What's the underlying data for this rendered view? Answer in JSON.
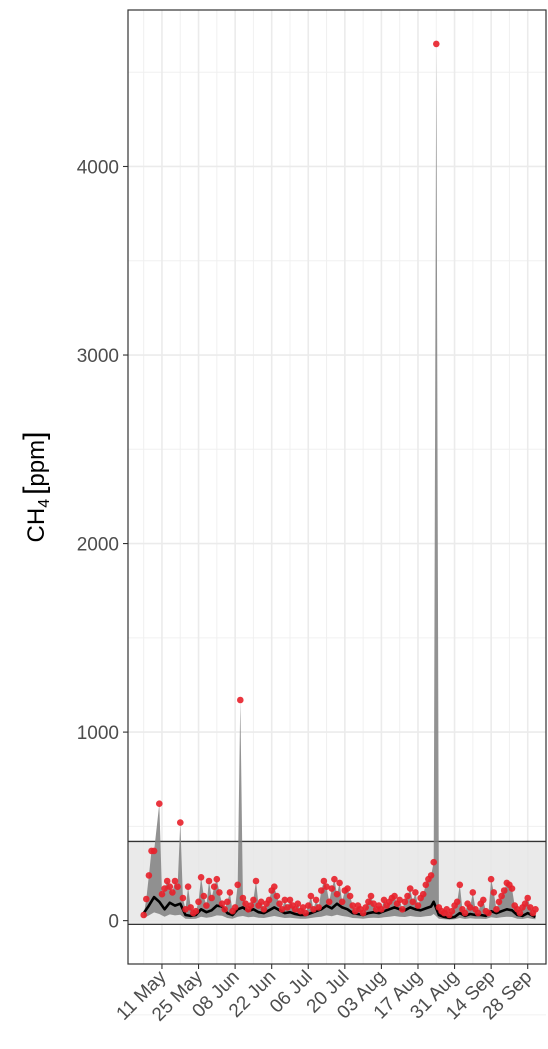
{
  "chart_data": {
    "type": "area",
    "title": "",
    "xlabel": "",
    "ylabel": {
      "main": "CH",
      "subscript": "4",
      "unit": "ppm"
    },
    "ylim": [
      -230,
      4830
    ],
    "xlim": [
      "2022-04-28",
      "2022-10-05"
    ],
    "grid": true,
    "legend": "none",
    "y_ticks": [
      0,
      1000,
      2000,
      3000,
      4000
    ],
    "y_tick_labels": [
      "0",
      "1000",
      "2000",
      "3000",
      "4000"
    ],
    "x_ticks": [
      "2022-05-11",
      "2022-05-25",
      "2022-06-08",
      "2022-06-22",
      "2022-07-06",
      "2022-07-20",
      "2022-08-03",
      "2022-08-17",
      "2022-08-31",
      "2022-09-14",
      "2022-09-28"
    ],
    "x_tick_labels": [
      "11 May",
      "25 May",
      "08 Jun",
      "22 Jun",
      "06 Jul",
      "20 Jul",
      "03 Aug",
      "17 Aug",
      "31 Aug",
      "14 Sep",
      "28 Sep"
    ],
    "band": {
      "ymin": -20,
      "ymax": 420
    },
    "colors": {
      "max_points": "#e8202a",
      "median_line": "#000000",
      "range_fill": "#808080",
      "band_fill": "#e6e6e6",
      "band_edge": "#333333"
    },
    "series": [
      {
        "role": "max_points",
        "points": [
          [
            "2022-05-04",
            30
          ],
          [
            "2022-05-05",
            115
          ],
          [
            "2022-05-06",
            240
          ],
          [
            "2022-05-07",
            370
          ],
          [
            "2022-05-08",
            370
          ],
          [
            "2022-05-10",
            620
          ],
          [
            "2022-05-11",
            140
          ],
          [
            "2022-05-12",
            170
          ],
          [
            "2022-05-13",
            210
          ],
          [
            "2022-05-14",
            180
          ],
          [
            "2022-05-15",
            150
          ],
          [
            "2022-05-16",
            210
          ],
          [
            "2022-05-17",
            180
          ],
          [
            "2022-05-18",
            520
          ],
          [
            "2022-05-19",
            120
          ],
          [
            "2022-05-20",
            60
          ],
          [
            "2022-05-21",
            180
          ],
          [
            "2022-05-22",
            70
          ],
          [
            "2022-05-23",
            40
          ],
          [
            "2022-05-24",
            50
          ],
          [
            "2022-05-25",
            100
          ],
          [
            "2022-05-26",
            230
          ],
          [
            "2022-05-27",
            130
          ],
          [
            "2022-05-28",
            80
          ],
          [
            "2022-05-29",
            210
          ],
          [
            "2022-05-30",
            120
          ],
          [
            "2022-05-31",
            180
          ],
          [
            "2022-06-01",
            220
          ],
          [
            "2022-06-02",
            150
          ],
          [
            "2022-06-03",
            90
          ],
          [
            "2022-06-04",
            60
          ],
          [
            "2022-06-05",
            100
          ],
          [
            "2022-06-06",
            150
          ],
          [
            "2022-06-07",
            50
          ],
          [
            "2022-06-08",
            70
          ],
          [
            "2022-06-09",
            190
          ],
          [
            "2022-06-10",
            1170
          ],
          [
            "2022-06-11",
            120
          ],
          [
            "2022-06-12",
            90
          ],
          [
            "2022-06-13",
            60
          ],
          [
            "2022-06-14",
            80
          ],
          [
            "2022-06-15",
            110
          ],
          [
            "2022-06-16",
            210
          ],
          [
            "2022-06-17",
            80
          ],
          [
            "2022-06-18",
            100
          ],
          [
            "2022-06-19",
            60
          ],
          [
            "2022-06-20",
            90
          ],
          [
            "2022-06-21",
            110
          ],
          [
            "2022-06-22",
            160
          ],
          [
            "2022-06-23",
            180
          ],
          [
            "2022-06-24",
            130
          ],
          [
            "2022-06-25",
            90
          ],
          [
            "2022-06-26",
            60
          ],
          [
            "2022-06-27",
            110
          ],
          [
            "2022-06-28",
            70
          ],
          [
            "2022-06-29",
            110
          ],
          [
            "2022-06-30",
            80
          ],
          [
            "2022-07-01",
            60
          ],
          [
            "2022-07-02",
            90
          ],
          [
            "2022-07-03",
            50
          ],
          [
            "2022-07-04",
            70
          ],
          [
            "2022-07-05",
            40
          ],
          [
            "2022-07-06",
            80
          ],
          [
            "2022-07-07",
            130
          ],
          [
            "2022-07-08",
            60
          ],
          [
            "2022-07-09",
            110
          ],
          [
            "2022-07-10",
            70
          ],
          [
            "2022-07-11",
            160
          ],
          [
            "2022-07-12",
            210
          ],
          [
            "2022-07-13",
            180
          ],
          [
            "2022-07-14",
            100
          ],
          [
            "2022-07-15",
            170
          ],
          [
            "2022-07-16",
            220
          ],
          [
            "2022-07-17",
            140
          ],
          [
            "2022-07-18",
            200
          ],
          [
            "2022-07-19",
            100
          ],
          [
            "2022-07-20",
            160
          ],
          [
            "2022-07-21",
            170
          ],
          [
            "2022-07-22",
            130
          ],
          [
            "2022-07-23",
            80
          ],
          [
            "2022-07-24",
            50
          ],
          [
            "2022-07-25",
            80
          ],
          [
            "2022-07-26",
            60
          ],
          [
            "2022-07-27",
            40
          ],
          [
            "2022-07-28",
            70
          ],
          [
            "2022-07-29",
            100
          ],
          [
            "2022-07-30",
            130
          ],
          [
            "2022-07-31",
            90
          ],
          [
            "2022-08-01",
            60
          ],
          [
            "2022-08-02",
            80
          ],
          [
            "2022-08-03",
            60
          ],
          [
            "2022-08-04",
            110
          ],
          [
            "2022-08-05",
            80
          ],
          [
            "2022-08-06",
            100
          ],
          [
            "2022-08-07",
            120
          ],
          [
            "2022-08-08",
            130
          ],
          [
            "2022-08-09",
            90
          ],
          [
            "2022-08-10",
            110
          ],
          [
            "2022-08-11",
            60
          ],
          [
            "2022-08-12",
            100
          ],
          [
            "2022-08-13",
            130
          ],
          [
            "2022-08-14",
            170
          ],
          [
            "2022-08-15",
            100
          ],
          [
            "2022-08-16",
            150
          ],
          [
            "2022-08-17",
            80
          ],
          [
            "2022-08-18",
            120
          ],
          [
            "2022-08-19",
            140
          ],
          [
            "2022-08-20",
            190
          ],
          [
            "2022-08-21",
            220
          ],
          [
            "2022-08-22",
            240
          ],
          [
            "2022-08-23",
            310
          ],
          [
            "2022-08-24",
            4650
          ],
          [
            "2022-08-25",
            70
          ],
          [
            "2022-08-26",
            50
          ],
          [
            "2022-08-27",
            40
          ],
          [
            "2022-08-28",
            60
          ],
          [
            "2022-08-29",
            30
          ],
          [
            "2022-08-30",
            50
          ],
          [
            "2022-08-31",
            80
          ],
          [
            "2022-09-01",
            100
          ],
          [
            "2022-09-02",
            190
          ],
          [
            "2022-09-03",
            60
          ],
          [
            "2022-09-04",
            40
          ],
          [
            "2022-09-05",
            90
          ],
          [
            "2022-09-06",
            70
          ],
          [
            "2022-09-07",
            150
          ],
          [
            "2022-09-08",
            60
          ],
          [
            "2022-09-09",
            40
          ],
          [
            "2022-09-10",
            90
          ],
          [
            "2022-09-11",
            110
          ],
          [
            "2022-09-12",
            50
          ],
          [
            "2022-09-13",
            40
          ],
          [
            "2022-09-14",
            220
          ],
          [
            "2022-09-15",
            150
          ],
          [
            "2022-09-16",
            60
          ],
          [
            "2022-09-17",
            100
          ],
          [
            "2022-09-18",
            130
          ],
          [
            "2022-09-19",
            160
          ],
          [
            "2022-09-20",
            200
          ],
          [
            "2022-09-21",
            190
          ],
          [
            "2022-09-22",
            170
          ],
          [
            "2022-09-23",
            80
          ],
          [
            "2022-09-24",
            60
          ],
          [
            "2022-09-25",
            40
          ],
          [
            "2022-09-26",
            70
          ],
          [
            "2022-09-27",
            90
          ],
          [
            "2022-09-28",
            120
          ],
          [
            "2022-09-29",
            70
          ],
          [
            "2022-09-30",
            40
          ],
          [
            "2022-10-01",
            60
          ]
        ]
      },
      {
        "role": "median_line",
        "points": [
          [
            "2022-05-04",
            40
          ],
          [
            "2022-05-06",
            80
          ],
          [
            "2022-05-08",
            125
          ],
          [
            "2022-05-10",
            100
          ],
          [
            "2022-05-12",
            60
          ],
          [
            "2022-05-14",
            95
          ],
          [
            "2022-05-16",
            80
          ],
          [
            "2022-05-18",
            90
          ],
          [
            "2022-05-20",
            30
          ],
          [
            "2022-05-22",
            25
          ],
          [
            "2022-05-24",
            30
          ],
          [
            "2022-05-26",
            60
          ],
          [
            "2022-05-28",
            45
          ],
          [
            "2022-05-30",
            55
          ],
          [
            "2022-06-01",
            80
          ],
          [
            "2022-06-03",
            75
          ],
          [
            "2022-06-05",
            40
          ],
          [
            "2022-06-07",
            30
          ],
          [
            "2022-06-09",
            60
          ],
          [
            "2022-06-11",
            70
          ],
          [
            "2022-06-13",
            50
          ],
          [
            "2022-06-15",
            60
          ],
          [
            "2022-06-17",
            45
          ],
          [
            "2022-06-19",
            40
          ],
          [
            "2022-06-21",
            55
          ],
          [
            "2022-06-23",
            70
          ],
          [
            "2022-06-25",
            55
          ],
          [
            "2022-06-27",
            40
          ],
          [
            "2022-06-29",
            45
          ],
          [
            "2022-07-01",
            35
          ],
          [
            "2022-07-03",
            30
          ],
          [
            "2022-07-05",
            30
          ],
          [
            "2022-07-07",
            40
          ],
          [
            "2022-07-09",
            50
          ],
          [
            "2022-07-11",
            60
          ],
          [
            "2022-07-13",
            80
          ],
          [
            "2022-07-15",
            65
          ],
          [
            "2022-07-17",
            90
          ],
          [
            "2022-07-19",
            70
          ],
          [
            "2022-07-21",
            60
          ],
          [
            "2022-07-23",
            40
          ],
          [
            "2022-07-25",
            35
          ],
          [
            "2022-07-27",
            30
          ],
          [
            "2022-07-29",
            40
          ],
          [
            "2022-07-31",
            45
          ],
          [
            "2022-08-02",
            40
          ],
          [
            "2022-08-04",
            50
          ],
          [
            "2022-08-06",
            60
          ],
          [
            "2022-08-08",
            70
          ],
          [
            "2022-08-10",
            60
          ],
          [
            "2022-08-12",
            55
          ],
          [
            "2022-08-14",
            70
          ],
          [
            "2022-08-16",
            60
          ],
          [
            "2022-08-18",
            55
          ],
          [
            "2022-08-20",
            65
          ],
          [
            "2022-08-22",
            75
          ],
          [
            "2022-08-23",
            100
          ],
          [
            "2022-08-25",
            30
          ],
          [
            "2022-08-27",
            20
          ],
          [
            "2022-08-29",
            15
          ],
          [
            "2022-08-31",
            20
          ],
          [
            "2022-09-02",
            40
          ],
          [
            "2022-09-04",
            25
          ],
          [
            "2022-09-06",
            35
          ],
          [
            "2022-09-08",
            30
          ],
          [
            "2022-09-10",
            30
          ],
          [
            "2022-09-12",
            25
          ],
          [
            "2022-09-14",
            50
          ],
          [
            "2022-09-16",
            40
          ],
          [
            "2022-09-18",
            50
          ],
          [
            "2022-09-20",
            60
          ],
          [
            "2022-09-22",
            55
          ],
          [
            "2022-09-24",
            30
          ],
          [
            "2022-09-26",
            25
          ],
          [
            "2022-09-28",
            40
          ],
          [
            "2022-09-30",
            25
          ],
          [
            "2022-10-01",
            20
          ]
        ]
      }
    ]
  }
}
